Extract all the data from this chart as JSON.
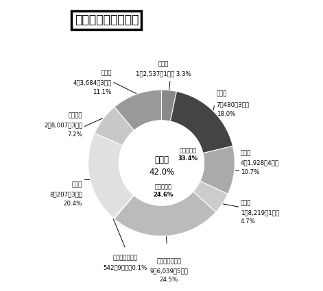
{
  "title": "歳出性質別決算状況",
  "center_text": "その他\n42.0%",
  "inner_label_gimu": "義務的経費\n33.4%",
  "inner_label_toshi": "投資的経費\n24.6%",
  "slices": [
    {
      "label": "その他",
      "sub1": "1億2,537万1千円 3.3%",
      "value": 3.3,
      "color": "#888888"
    },
    {
      "label": "人件費",
      "sub1": "7億480万3千円",
      "sub2": "18.0%",
      "value": 18.0,
      "color": "#444444"
    },
    {
      "label": "公信費",
      "sub1": "4億1,928万4千円",
      "sub2": "10.7%",
      "value": 10.7,
      "color": "#aaaaaa"
    },
    {
      "label": "扶助費",
      "sub1": "1億8,219万1千円",
      "sub2": "4.7%",
      "value": 4.7,
      "color": "#cccccc"
    },
    {
      "label": "普通建設事業費",
      "sub1": "9億6,039万5千円",
      "sub2": "24.5%",
      "value": 24.5,
      "color": "#bbbbbb"
    },
    {
      "label": "災害復旧事業費",
      "sub1": "542万9千円　0.1%",
      "value": 0.1,
      "color": "#888888"
    },
    {
      "label": "物件費",
      "sub1": "8億207万3千円",
      "sub2": "20.4%",
      "value": 20.4,
      "color": "#e0e0e0"
    },
    {
      "label": "補助費等",
      "sub1": "2億8,007万3千円",
      "sub2": "7.2%",
      "value": 7.2,
      "color": "#c8c8c8"
    },
    {
      "label": "繰出金",
      "sub1": "4億3,684万3千円",
      "sub2": "11.1%",
      "value": 11.1,
      "color": "#999999"
    }
  ],
  "start_angle": 90,
  "bg_color": "#ffffff"
}
